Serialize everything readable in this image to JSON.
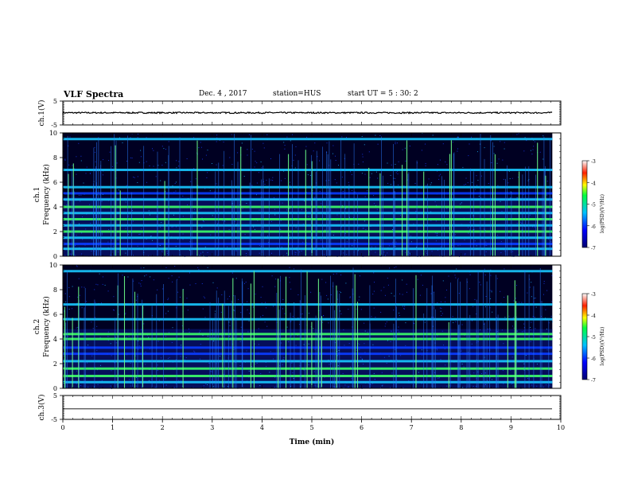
{
  "header": {
    "title": "VLF Spectra",
    "date": "Dec. 4 , 2017",
    "station": "station=HUS",
    "start": "start UT = 5 : 30: 2"
  },
  "chart_data": [
    {
      "type": "line",
      "name": "ch1-waveform",
      "ylabel": "ch.1(V)",
      "ylim": [
        -5,
        5
      ],
      "yticks": [
        "5",
        "-5"
      ],
      "xlim": [
        0,
        10
      ],
      "x_end": 9.83,
      "level": 0.1,
      "noise_amplitude": 0.3
    },
    {
      "type": "heatmap",
      "name": "ch1-spectrogram",
      "ylabel": "ch.1\nFrequency (kHz)",
      "ylim": [
        0,
        10
      ],
      "yticks": [
        "0",
        "2",
        "4",
        "6",
        "8",
        "10"
      ],
      "xlim": [
        0,
        10
      ],
      "x_end": 9.83,
      "bands_khz": [
        {
          "f": 0.6,
          "level": "cyan"
        },
        {
          "f": 1.0,
          "level": "blue"
        },
        {
          "f": 1.5,
          "level": "cyan"
        },
        {
          "f": 2.0,
          "level": "green"
        },
        {
          "f": 2.5,
          "level": "cyan"
        },
        {
          "f": 3.0,
          "level": "green"
        },
        {
          "f": 3.5,
          "level": "cyan"
        },
        {
          "f": 4.0,
          "level": "green"
        },
        {
          "f": 4.6,
          "level": "cyan"
        },
        {
          "f": 5.1,
          "level": "blue"
        },
        {
          "f": 5.6,
          "level": "cyan"
        },
        {
          "f": 7.0,
          "level": "cyan"
        },
        {
          "f": 9.5,
          "level": "cyan"
        }
      ],
      "colorbar": {
        "label": "log(PSD)(V²/Hz)",
        "range": [
          -7,
          -3
        ],
        "ticks": [
          "-3",
          "-4",
          "-5",
          "-6",
          "-7"
        ]
      }
    },
    {
      "type": "heatmap",
      "name": "ch2-spectrogram",
      "ylabel": "ch.2\nFrequency (kHz)",
      "ylim": [
        0,
        10
      ],
      "yticks": [
        "0",
        "2",
        "4",
        "6",
        "8",
        "10"
      ],
      "xlim": [
        0,
        10
      ],
      "x_end": 9.83,
      "bands_khz": [
        {
          "f": 0.5,
          "level": "cyan"
        },
        {
          "f": 1.0,
          "level": "green"
        },
        {
          "f": 1.6,
          "level": "green"
        },
        {
          "f": 2.2,
          "level": "cyan"
        },
        {
          "f": 2.8,
          "level": "blue"
        },
        {
          "f": 3.3,
          "level": "blue"
        },
        {
          "f": 4.0,
          "level": "green"
        },
        {
          "f": 4.4,
          "level": "green"
        },
        {
          "f": 5.6,
          "level": "cyan"
        },
        {
          "f": 6.8,
          "level": "cyan"
        },
        {
          "f": 9.5,
          "level": "cyan"
        }
      ],
      "colorbar": {
        "label": "log(PSD)(V²/Hz)",
        "range": [
          -7,
          -3
        ],
        "ticks": [
          "-3",
          "-4",
          "-5",
          "-6",
          "-7"
        ]
      }
    },
    {
      "type": "line",
      "name": "ch3-waveform",
      "ylabel": "ch.3(V)",
      "ylim": [
        -5,
        5
      ],
      "yticks": [
        "5",
        "-5"
      ],
      "xlim": [
        0,
        10
      ],
      "x_end": 9.83,
      "level": -0.6,
      "noise_amplitude": 0
    }
  ],
  "xaxis": {
    "label": "Time (min)",
    "ticks": [
      "0",
      "1",
      "2",
      "3",
      "4",
      "5",
      "6",
      "7",
      "8",
      "9",
      "10"
    ]
  },
  "colors": {
    "background": "#000022",
    "axis": "#000000"
  }
}
